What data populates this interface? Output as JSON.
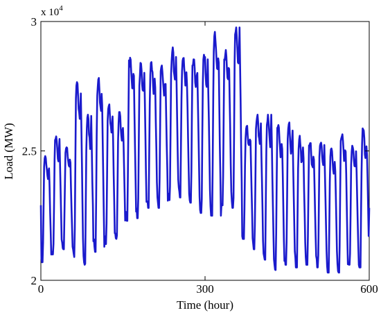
{
  "chart_data": {
    "type": "line",
    "title": "",
    "xlabel": "Time (hour)",
    "ylabel": "Load (MW)",
    "y_multiplier": "x 10",
    "y_multiplier_exponent": "4",
    "xlim": [
      0,
      600
    ],
    "ylim": [
      20000,
      30000
    ],
    "xticks": [
      0,
      300,
      600
    ],
    "yticks": [
      20000,
      25000,
      30000
    ],
    "xtick_labels": [
      "0",
      "300",
      "600"
    ],
    "ytick_labels": [
      "2",
      "2.5",
      "3"
    ],
    "grid": false,
    "legend": "none",
    "series": [
      {
        "color": "#1a1acc",
        "daily_peaks": [
          24800,
          25600,
          25200,
          27700,
          26400,
          27900,
          26900,
          26500,
          28600,
          28400,
          28500,
          28300,
          29000,
          28700,
          28600,
          28800,
          29600,
          28900,
          29900,
          26000,
          26400,
          26400,
          26000,
          26100,
          25600,
          25300,
          25400,
          25200,
          25700,
          25200,
          25900
        ],
        "daily_troughs": [
          20700,
          21000,
          21200,
          20900,
          20600,
          21100,
          21400,
          21600,
          22300,
          22400,
          22800,
          22800,
          23100,
          23200,
          23000,
          22600,
          22500,
          22900,
          22800,
          21600,
          21200,
          20800,
          20400,
          20600,
          20500,
          20600,
          20500,
          20300,
          20300,
          20600,
          20500
        ],
        "start_value": 22900,
        "end_value": 22800
      }
    ]
  }
}
